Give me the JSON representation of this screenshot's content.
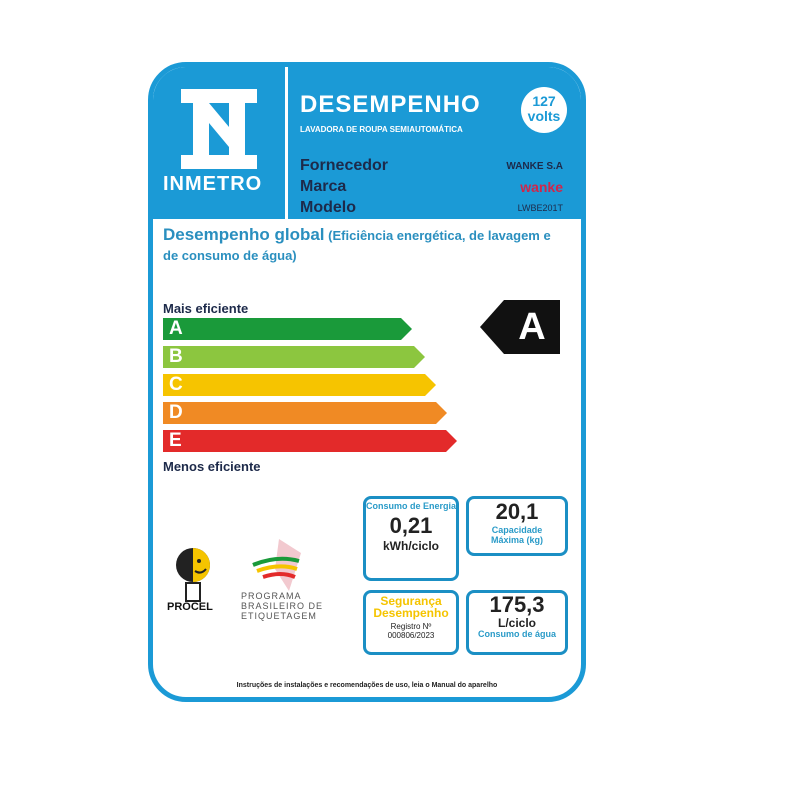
{
  "header": {
    "logo_text": "INMETRO",
    "title": "DESEMPENHO",
    "subtitle": "LAVADORA DE ROUPA SEMIAUTOMÁTICA",
    "voltage_number": "127",
    "voltage_unit": "volts"
  },
  "info": [
    {
      "label": "Fornecedor",
      "value": "WANKE S.A"
    },
    {
      "label": "Marca",
      "value": "wanke"
    },
    {
      "label": "Modelo",
      "value": "LWBE201T"
    }
  ],
  "performance": {
    "title": "Desempenho global",
    "title_note": "(Eficiência energética, de lavagem e de consumo de água)",
    "top_label": "Mais eficiente",
    "bottom_label": "Menos eficiente",
    "classes": [
      "A",
      "B",
      "C",
      "D",
      "E"
    ],
    "class_colors": [
      "#1a9a3a",
      "#8cc63f",
      "#f6c400",
      "#f08a24",
      "#e32a2a"
    ],
    "rating": "A"
  },
  "energy": {
    "label": "Consumo de Energia",
    "value": "0,21",
    "unit": "kWh/ciclo"
  },
  "capacity": {
    "value": "20,1",
    "label": "Capacidade Máxima (kg)"
  },
  "safety": {
    "line1": "Segurança",
    "line2": "Desempenho",
    "reg_label": "Registro Nº",
    "reg_number": "000806/2023"
  },
  "water": {
    "value": "175,3",
    "unit": "L/ciclo",
    "label": "Consumo de água"
  },
  "logos": {
    "procel": "PROCEL",
    "pbe": [
      "PROGRAMA",
      "BRASILEIRO DE",
      "ETIQUETAGEM"
    ]
  },
  "footer": "Instruções de instalações e recomendações de uso, leia o Manual do aparelho"
}
